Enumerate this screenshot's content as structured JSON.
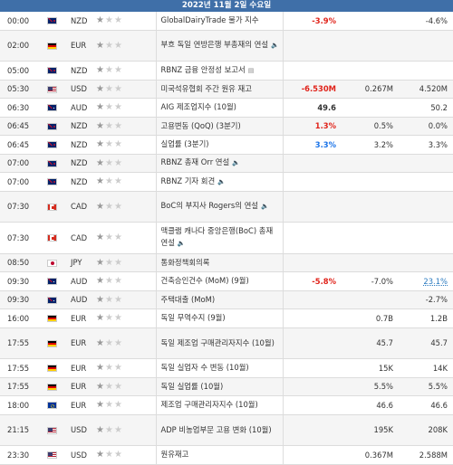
{
  "header": {
    "date": "2022년 11월 2일 수요일"
  },
  "rows": [
    {
      "time": "00:00",
      "flag": "nz",
      "cur": "NZD",
      "stars": 1,
      "event": "GlobalDairyTrade 물가 지수",
      "icon": "",
      "act": "-3.9%",
      "act_color": "red",
      "fc": "",
      "prev": "-4.6%",
      "prev_style": "",
      "tall": false
    },
    {
      "time": "02:00",
      "flag": "de",
      "cur": "EUR",
      "stars": 1,
      "event": "부흐 독일 연방은행 부총재의 연설",
      "icon": "speaker",
      "act": "",
      "act_color": "",
      "fc": "",
      "prev": "",
      "prev_style": "",
      "tall": true
    },
    {
      "time": "05:00",
      "flag": "nz",
      "cur": "NZD",
      "stars": 1,
      "event": "RBNZ 금융 안정성 보고서",
      "icon": "doc",
      "act": "",
      "act_color": "",
      "fc": "",
      "prev": "",
      "prev_style": "",
      "tall": false
    },
    {
      "time": "05:30",
      "flag": "us",
      "cur": "USD",
      "stars": 1,
      "event": "미국석유협회 주간 원유 재고",
      "icon": "",
      "act": "-6.530M",
      "act_color": "red",
      "fc": "0.267M",
      "prev": "4.520M",
      "prev_style": "",
      "tall": false
    },
    {
      "time": "06:30",
      "flag": "au",
      "cur": "AUD",
      "stars": 1,
      "event": "AIG 제조업지수 (10월)",
      "icon": "",
      "act": "49.6",
      "act_color": "dark",
      "fc": "",
      "prev": "50.2",
      "prev_style": "",
      "tall": false
    },
    {
      "time": "06:45",
      "flag": "nz",
      "cur": "NZD",
      "stars": 1,
      "event": "고용변동 (QoQ) (3분기)",
      "icon": "",
      "act": "1.3%",
      "act_color": "red",
      "fc": "0.5%",
      "prev": "0.0%",
      "prev_style": "",
      "tall": false
    },
    {
      "time": "06:45",
      "flag": "nz",
      "cur": "NZD",
      "stars": 1,
      "event": "실업률 (3분기)",
      "icon": "",
      "act": "3.3%",
      "act_color": "blue",
      "fc": "3.2%",
      "prev": "3.3%",
      "prev_style": "",
      "tall": false
    },
    {
      "time": "07:00",
      "flag": "nz",
      "cur": "NZD",
      "stars": 1,
      "event": "RBNZ 총재 Orr 연설",
      "icon": "speaker",
      "act": "",
      "act_color": "",
      "fc": "",
      "prev": "",
      "prev_style": "",
      "tall": false
    },
    {
      "time": "07:00",
      "flag": "nz",
      "cur": "NZD",
      "stars": 1,
      "event": "RBNZ 기자 회견",
      "icon": "speaker",
      "act": "",
      "act_color": "",
      "fc": "",
      "prev": "",
      "prev_style": "",
      "tall": false
    },
    {
      "time": "07:30",
      "flag": "ca",
      "cur": "CAD",
      "stars": 1,
      "event": "BoC의 부지사 Rogers의 연설",
      "icon": "speaker",
      "act": "",
      "act_color": "",
      "fc": "",
      "prev": "",
      "prev_style": "",
      "tall": true
    },
    {
      "time": "07:30",
      "flag": "ca",
      "cur": "CAD",
      "stars": 1,
      "event": "맥클램 캐나다 중앙은행(BoC) 총재 연설",
      "icon": "speaker",
      "act": "",
      "act_color": "",
      "fc": "",
      "prev": "",
      "prev_style": "",
      "tall": true
    },
    {
      "time": "08:50",
      "flag": "jp",
      "cur": "JPY",
      "stars": 1,
      "event": "통화정책회의록",
      "icon": "",
      "act": "",
      "act_color": "",
      "fc": "",
      "prev": "",
      "prev_style": "",
      "tall": false
    },
    {
      "time": "09:30",
      "flag": "au",
      "cur": "AUD",
      "stars": 1,
      "event": "건축승인건수 (MoM) (9월)",
      "icon": "",
      "act": "-5.8%",
      "act_color": "red",
      "fc": "-7.0%",
      "prev": "23.1%",
      "prev_style": "link",
      "tall": false
    },
    {
      "time": "09:30",
      "flag": "au",
      "cur": "AUD",
      "stars": 1,
      "event": "주택대출 (MoM)",
      "icon": "",
      "act": "",
      "act_color": "",
      "fc": "",
      "prev": "-2.7%",
      "prev_style": "",
      "tall": false
    },
    {
      "time": "16:00",
      "flag": "de",
      "cur": "EUR",
      "stars": 1,
      "event": "독일 무역수지 (9월)",
      "icon": "",
      "act": "",
      "act_color": "",
      "fc": "0.7B",
      "prev": "1.2B",
      "prev_style": "",
      "tall": false
    },
    {
      "time": "17:55",
      "flag": "de",
      "cur": "EUR",
      "stars": 1,
      "event": "독일 제조업 구매관리자지수 (10월)",
      "icon": "",
      "act": "",
      "act_color": "",
      "fc": "45.7",
      "prev": "45.7",
      "prev_style": "",
      "tall": true
    },
    {
      "time": "17:55",
      "flag": "de",
      "cur": "EUR",
      "stars": 1,
      "event": "독일 실업자 수 변동 (10월)",
      "icon": "",
      "act": "",
      "act_color": "",
      "fc": "15K",
      "prev": "14K",
      "prev_style": "",
      "tall": false
    },
    {
      "time": "17:55",
      "flag": "de",
      "cur": "EUR",
      "stars": 1,
      "event": "독일 실업률 (10월)",
      "icon": "",
      "act": "",
      "act_color": "",
      "fc": "5.5%",
      "prev": "5.5%",
      "prev_style": "",
      "tall": false
    },
    {
      "time": "18:00",
      "flag": "eu",
      "cur": "EUR",
      "stars": 1,
      "event": "제조업 구매관리자지수 (10월)",
      "icon": "",
      "act": "",
      "act_color": "",
      "fc": "46.6",
      "prev": "46.6",
      "prev_style": "",
      "tall": false
    },
    {
      "time": "21:15",
      "flag": "us",
      "cur": "USD",
      "stars": 1,
      "event": "ADP 비농업부문 고용 변화 (10월)",
      "icon": "",
      "act": "",
      "act_color": "",
      "fc": "195K",
      "prev": "208K",
      "prev_style": "",
      "tall": true
    },
    {
      "time": "23:30",
      "flag": "us",
      "cur": "USD",
      "stars": 1,
      "event": "원유재고",
      "icon": "",
      "act": "",
      "act_color": "",
      "fc": "0.367M",
      "prev": "2.588M",
      "prev_style": "",
      "tall": false
    }
  ],
  "icons": {
    "speaker": "🔈",
    "doc": "▤"
  },
  "colors": {
    "header_bg": "#3f6fa8",
    "red": "#e0231a",
    "blue": "#1a73e8",
    "link": "#2a7ac0"
  }
}
